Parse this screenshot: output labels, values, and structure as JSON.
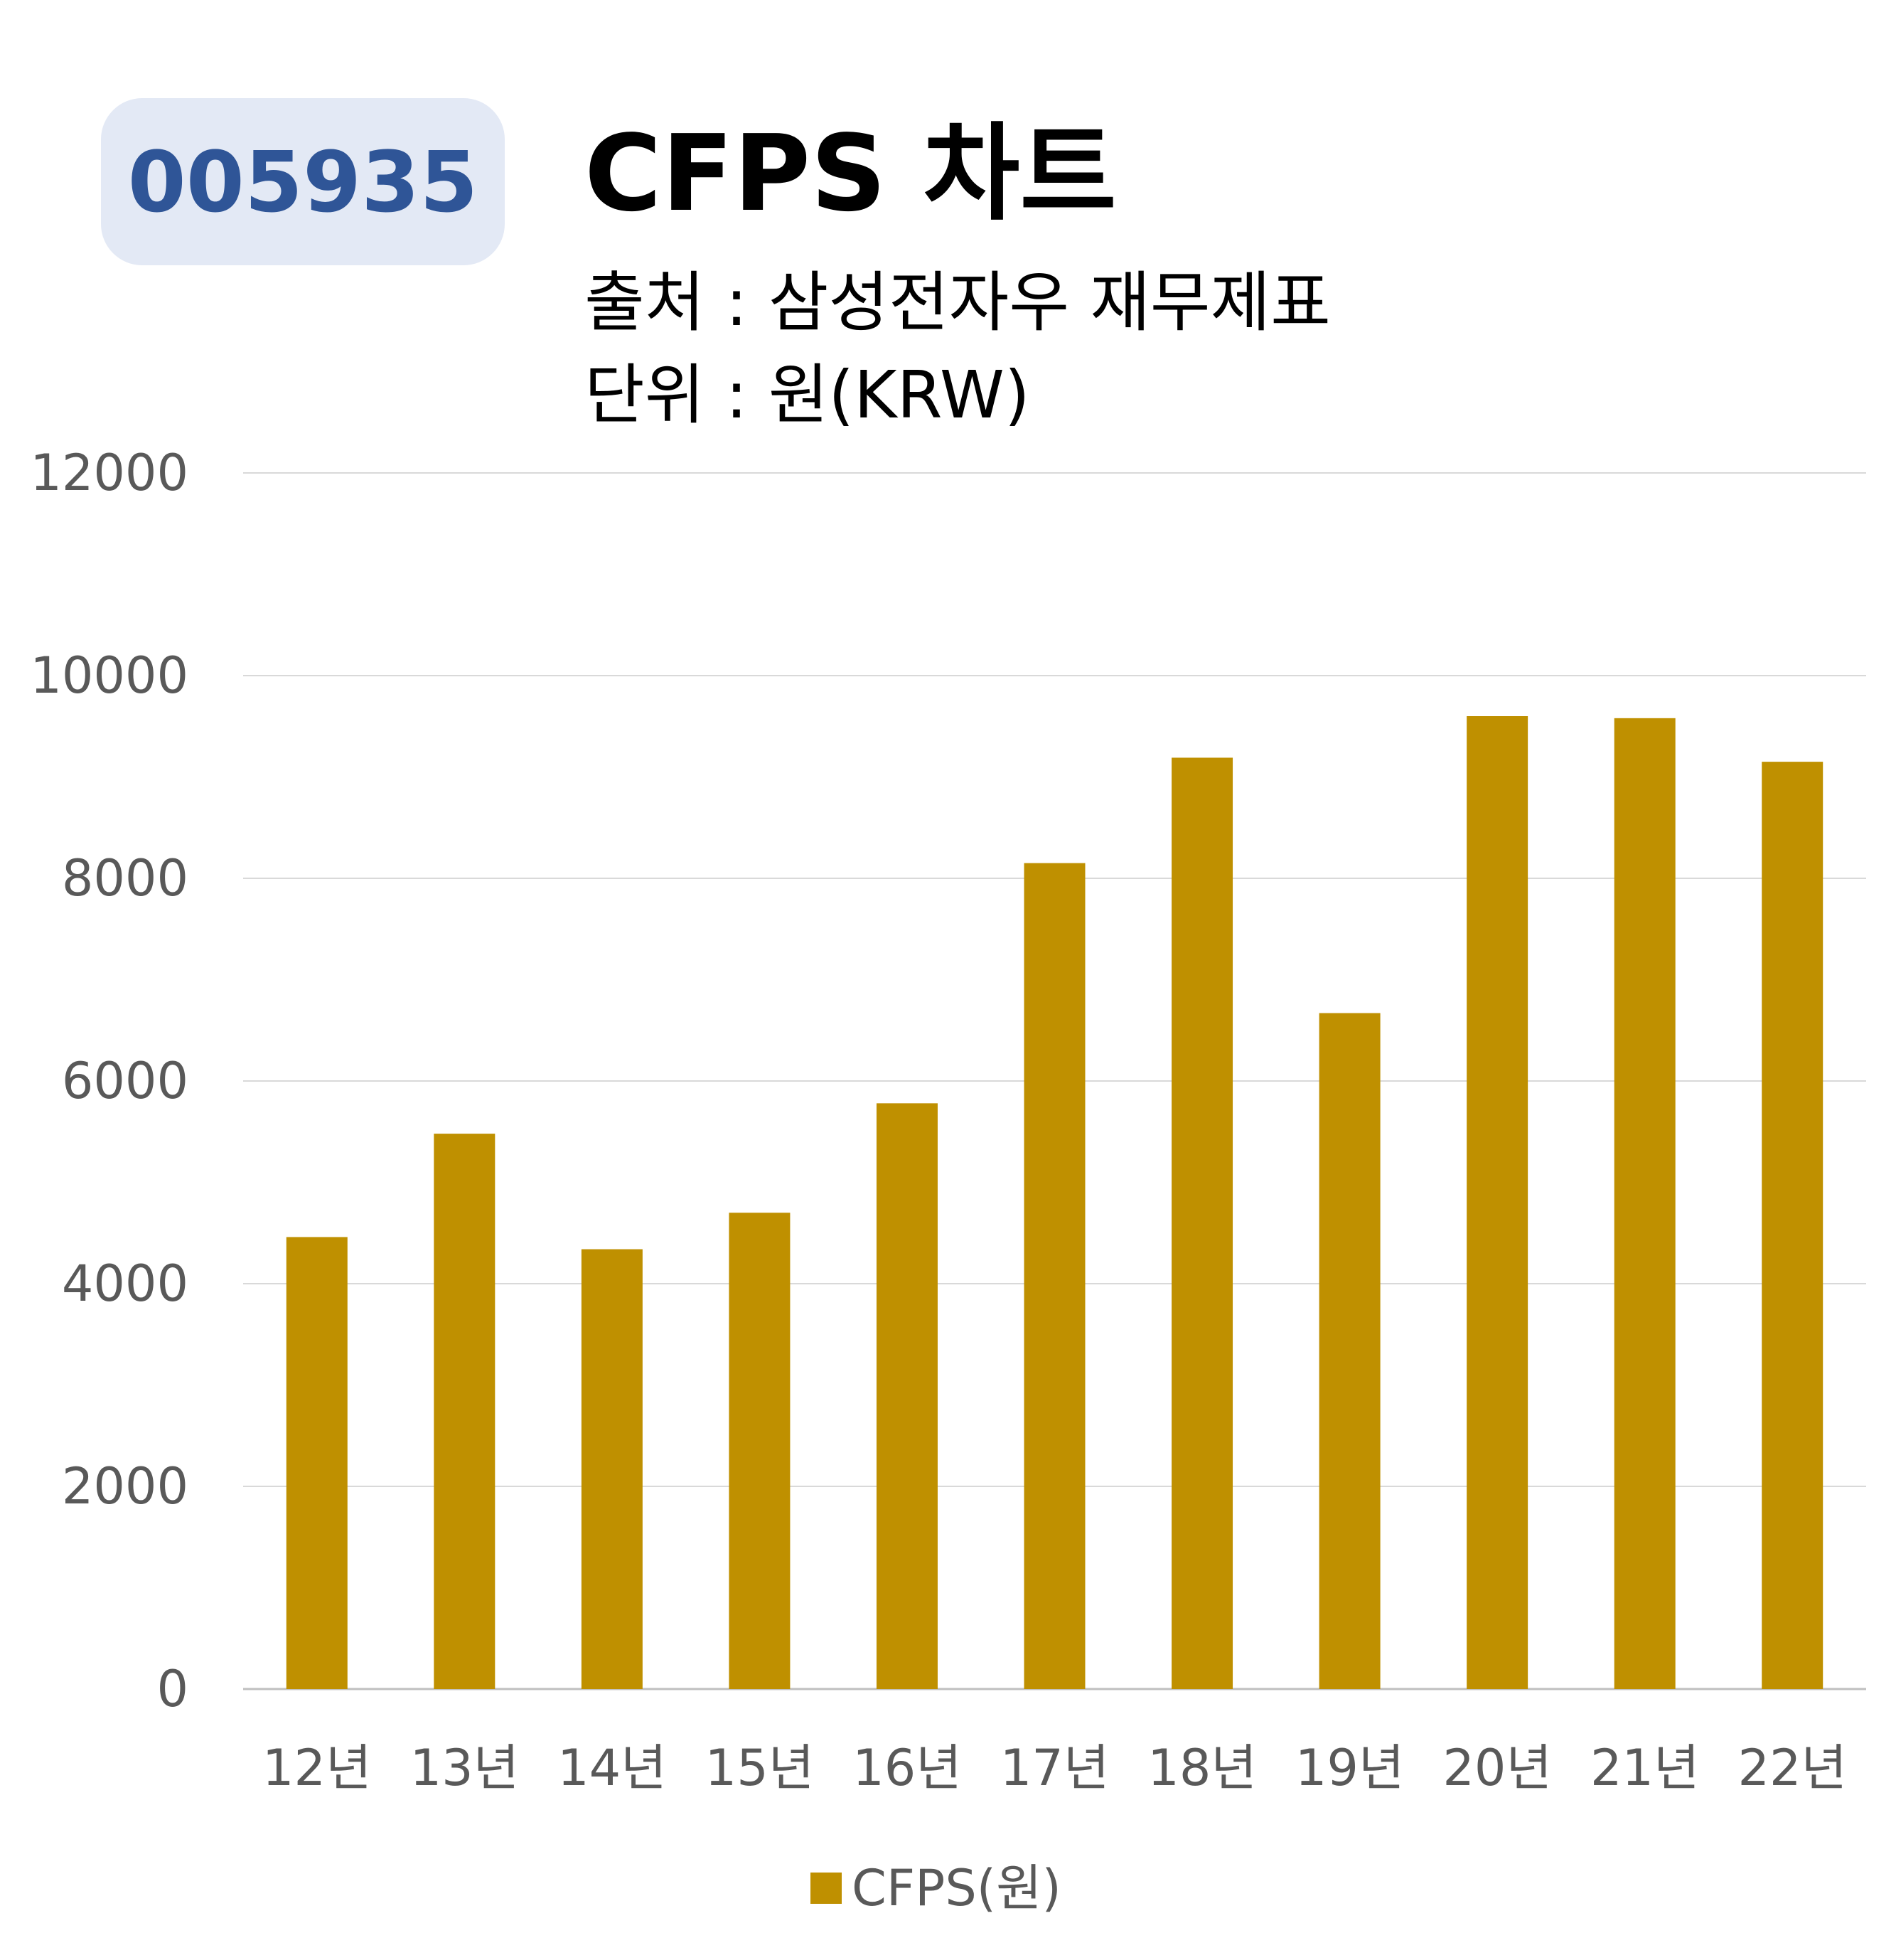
{
  "badge": {
    "code": "005935"
  },
  "header": {
    "title": "CFPS 차트",
    "source": "출처 : 삼성전자우 재무제표",
    "unit": "단위 : 원(KRW)"
  },
  "chart_data": {
    "type": "bar",
    "categories": [
      "12년",
      "13년",
      "14년",
      "15년",
      "16년",
      "17년",
      "18년",
      "19년",
      "20년",
      "21년",
      "22년"
    ],
    "series": [
      {
        "name": "CFPS(원)",
        "color": "#bf9000",
        "values": [
          4460,
          5480,
          4340,
          4700,
          5780,
          8150,
          9190,
          6670,
          9600,
          9580,
          9150
        ]
      }
    ],
    "yticks": [
      0,
      2000,
      4000,
      6000,
      8000,
      10000,
      12000
    ],
    "ylim": [
      0,
      12000
    ],
    "grid": true,
    "legend": "bottom"
  }
}
